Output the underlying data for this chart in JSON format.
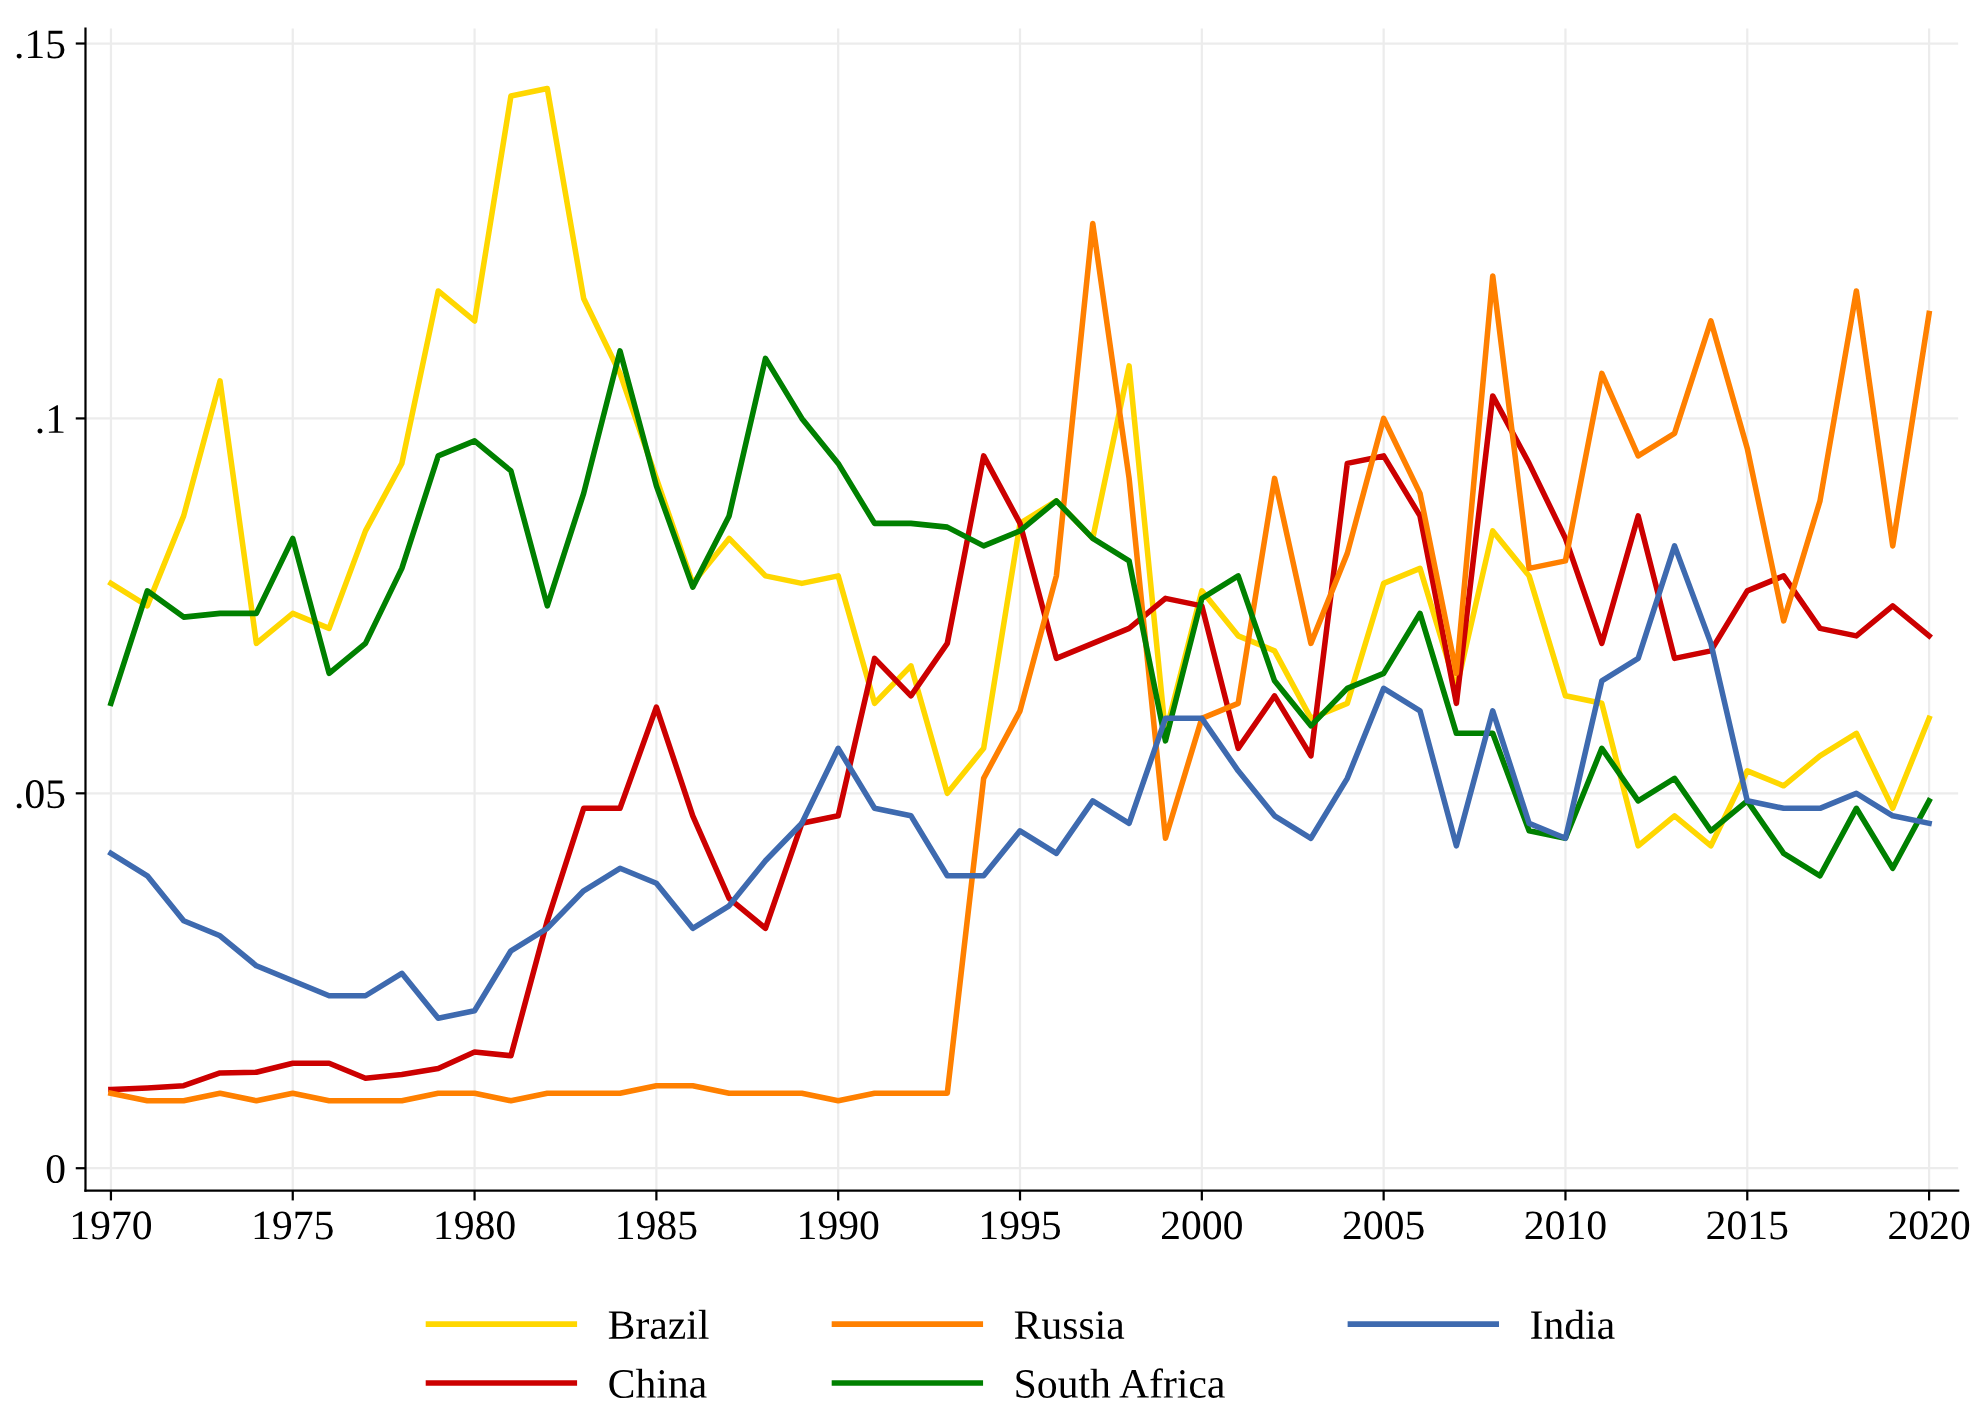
{
  "chart_data": {
    "type": "line",
    "x": [
      1970,
      1971,
      1972,
      1973,
      1974,
      1975,
      1976,
      1977,
      1978,
      1979,
      1980,
      1981,
      1982,
      1983,
      1984,
      1985,
      1986,
      1987,
      1988,
      1989,
      1990,
      1991,
      1992,
      1993,
      1994,
      1995,
      1996,
      1997,
      1998,
      1999,
      2000,
      2001,
      2002,
      2003,
      2004,
      2005,
      2006,
      2007,
      2008,
      2009,
      2010,
      2011,
      2012,
      2013,
      2014,
      2015,
      2016,
      2017,
      2018,
      2019,
      2020
    ],
    "series": [
      {
        "name": "Brazil",
        "color": "#ffd700",
        "values": [
          0.078,
          0.075,
          0.087,
          0.105,
          0.07,
          0.074,
          0.072,
          0.085,
          0.094,
          0.117,
          0.113,
          0.143,
          0.144,
          0.116,
          0.106,
          0.092,
          0.078,
          0.084,
          0.079,
          0.078,
          0.079,
          0.062,
          0.067,
          0.05,
          0.056,
          0.086,
          0.089,
          0.084,
          0.107,
          0.058,
          0.077,
          0.071,
          0.069,
          0.06,
          0.062,
          0.078,
          0.08,
          0.064,
          0.085,
          0.079,
          0.063,
          0.062,
          0.043,
          0.047,
          0.043,
          0.053,
          0.051,
          0.055,
          0.058,
          0.048,
          0.06
        ]
      },
      {
        "name": "China",
        "color": "#cc0000",
        "values": [
          0.0105,
          0.0107,
          0.011,
          0.0127,
          0.0128,
          0.014,
          0.014,
          0.012,
          0.0125,
          0.0133,
          0.0155,
          0.015,
          0.033,
          0.048,
          0.048,
          0.0615,
          0.047,
          0.036,
          0.032,
          0.046,
          0.047,
          0.068,
          0.063,
          0.07,
          0.095,
          0.086,
          0.068,
          0.07,
          0.072,
          0.076,
          0.075,
          0.056,
          0.063,
          0.055,
          0.094,
          0.095,
          0.087,
          0.062,
          0.103,
          0.094,
          0.084,
          0.07,
          0.087,
          0.068,
          0.069,
          0.077,
          0.079,
          0.072,
          0.071,
          0.075,
          0.071
        ]
      },
      {
        "name": "Russia",
        "color": "#ff8000",
        "values": [
          0.01,
          0.009,
          0.009,
          0.01,
          0.009,
          0.01,
          0.009,
          0.009,
          0.009,
          0.01,
          0.01,
          0.009,
          0.01,
          0.01,
          0.01,
          0.011,
          0.011,
          0.01,
          0.01,
          0.01,
          0.009,
          0.01,
          0.01,
          0.01,
          0.052,
          0.061,
          0.079,
          0.126,
          0.092,
          0.044,
          0.06,
          0.062,
          0.092,
          0.07,
          0.082,
          0.1,
          0.09,
          0.066,
          0.119,
          0.08,
          0.081,
          0.106,
          0.095,
          0.098,
          0.113,
          0.096,
          0.073,
          0.089,
          0.117,
          0.083,
          0.114
        ]
      },
      {
        "name": "South Africa",
        "color": "#008000",
        "values": [
          0.062,
          0.077,
          0.0735,
          0.074,
          0.074,
          0.084,
          0.066,
          0.07,
          0.08,
          0.095,
          0.097,
          0.093,
          0.075,
          0.09,
          0.109,
          0.091,
          0.0775,
          0.087,
          0.108,
          0.1,
          0.094,
          0.086,
          0.086,
          0.0855,
          0.083,
          0.085,
          0.089,
          0.084,
          0.081,
          0.057,
          0.076,
          0.079,
          0.065,
          0.059,
          0.064,
          0.066,
          0.074,
          0.058,
          0.058,
          0.045,
          0.044,
          0.056,
          0.049,
          0.052,
          0.045,
          0.049,
          0.042,
          0.039,
          0.048,
          0.04,
          0.049
        ]
      },
      {
        "name": "India",
        "color": "#3e6aaf",
        "values": [
          0.042,
          0.039,
          0.033,
          0.031,
          0.027,
          0.025,
          0.023,
          0.023,
          0.026,
          0.02,
          0.021,
          0.029,
          0.032,
          0.037,
          0.04,
          0.038,
          0.032,
          0.035,
          0.041,
          0.046,
          0.056,
          0.048,
          0.047,
          0.039,
          0.039,
          0.045,
          0.042,
          0.049,
          0.046,
          0.06,
          0.06,
          0.053,
          0.047,
          0.044,
          0.052,
          0.064,
          0.061,
          0.043,
          0.061,
          0.046,
          0.044,
          0.065,
          0.068,
          0.083,
          0.07,
          0.049,
          0.048,
          0.048,
          0.05,
          0.047,
          0.046
        ]
      }
    ],
    "xlim": [
      1969.3,
      2020.8
    ],
    "xticks": [
      1970,
      1975,
      1980,
      1985,
      1990,
      1995,
      2000,
      2005,
      2010,
      2015,
      2020
    ],
    "ylim": [
      -0.003,
      0.152
    ],
    "yticks": [
      {
        "value": 0,
        "label": "0"
      },
      {
        "value": 0.05,
        "label": ".05"
      },
      {
        "value": 0.1,
        "label": ".1"
      },
      {
        "value": 0.15,
        "label": ".15"
      }
    ],
    "grid": true,
    "legend": "bottom",
    "marker": "none",
    "line_style": "solid"
  }
}
